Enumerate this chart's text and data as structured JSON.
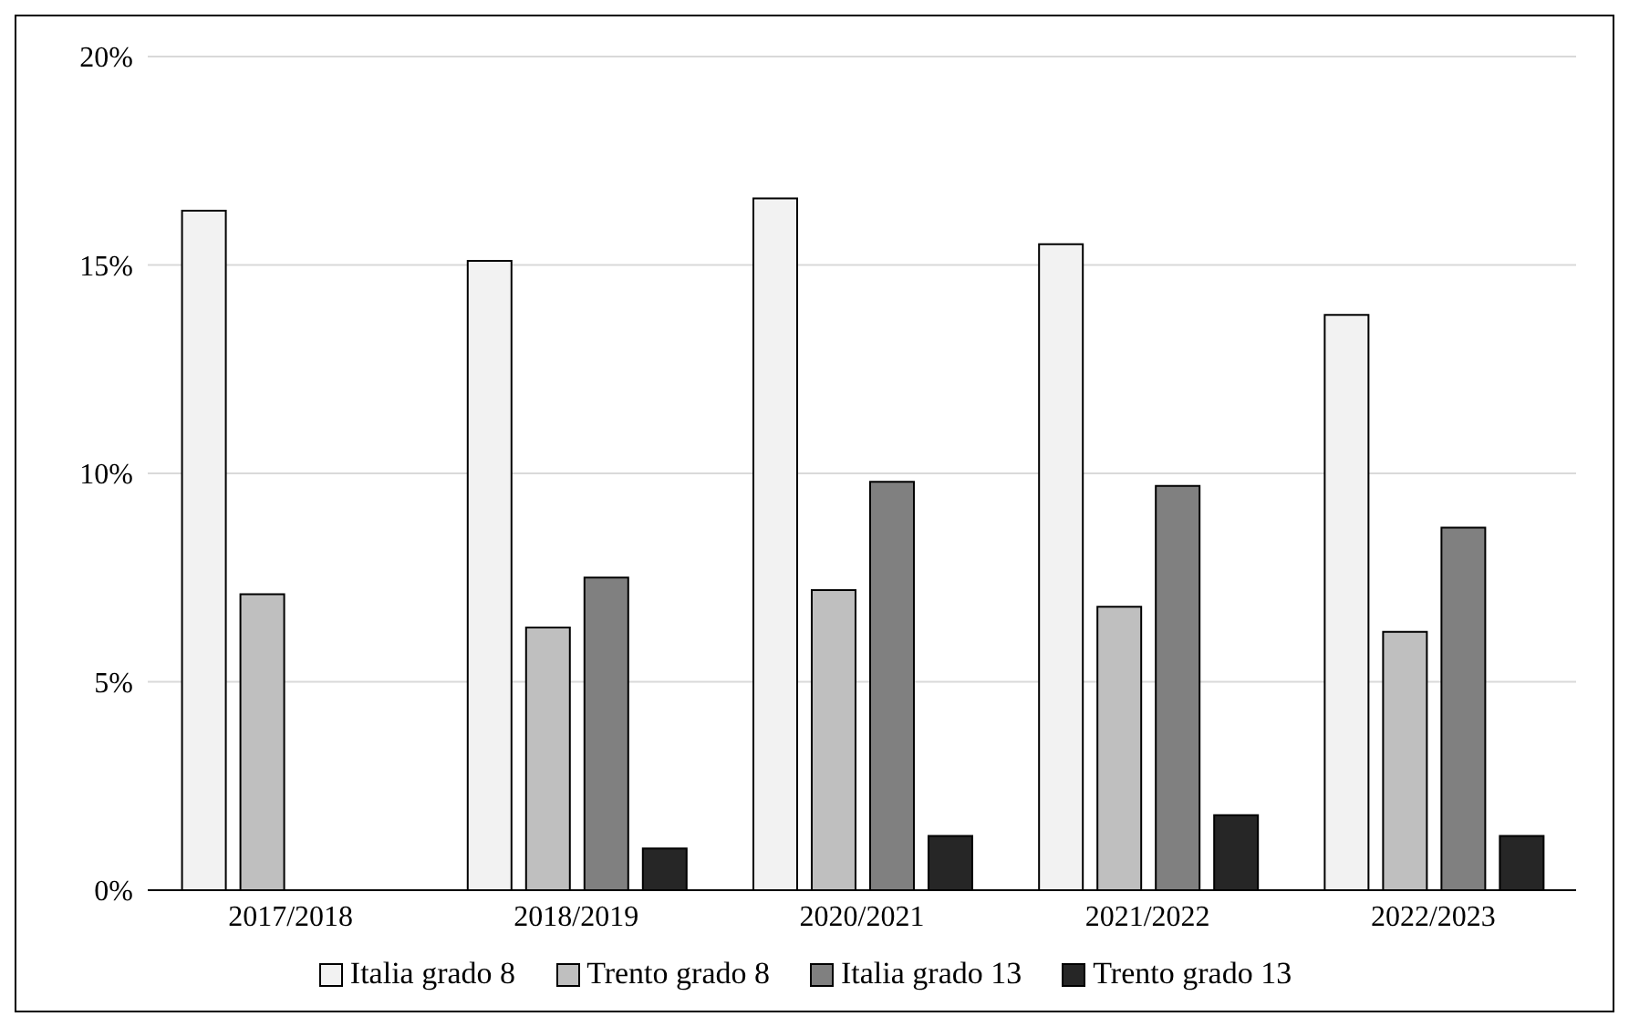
{
  "chart_data": {
    "type": "bar",
    "categories": [
      "2017/2018",
      "2018/2019",
      "2020/2021",
      "2021/2022",
      "2022/2023"
    ],
    "series": [
      {
        "name": "Italia grado 8",
        "color": "#f2f2f2",
        "values": [
          16.3,
          15.1,
          16.6,
          15.5,
          13.8
        ]
      },
      {
        "name": "Trento grado 8",
        "color": "#bfbfbf",
        "values": [
          7.1,
          6.3,
          7.2,
          6.8,
          6.2
        ]
      },
      {
        "name": "Italia grado 13",
        "color": "#808080",
        "values": [
          null,
          7.5,
          9.8,
          9.7,
          8.7
        ]
      },
      {
        "name": "Trento grado 13",
        "color": "#262626",
        "values": [
          null,
          1.0,
          1.3,
          1.8,
          1.3
        ]
      }
    ],
    "ylim": [
      0,
      20
    ],
    "yticks": [
      {
        "value": 0,
        "label": "0%"
      },
      {
        "value": 5,
        "label": "5%"
      },
      {
        "value": 10,
        "label": "10%"
      },
      {
        "value": 15,
        "label": "15%"
      },
      {
        "value": 20,
        "label": "20%"
      }
    ],
    "grid": "y",
    "legend": "bottom"
  }
}
